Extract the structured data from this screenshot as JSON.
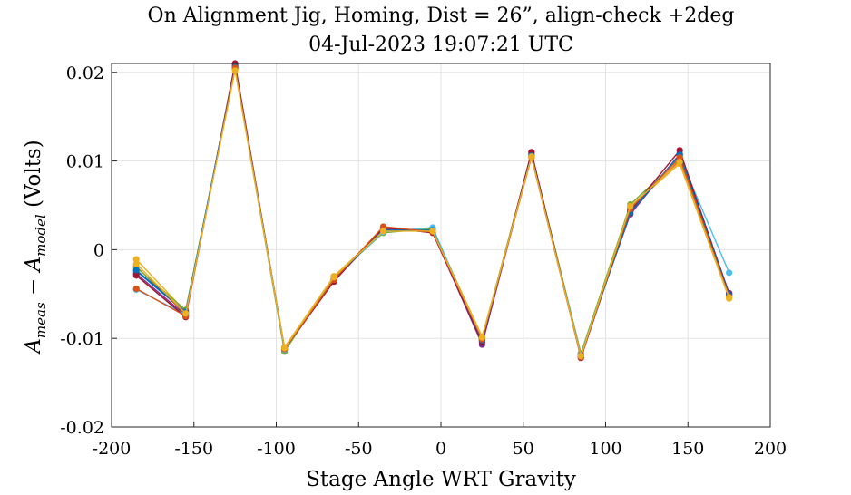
{
  "chart_data": {
    "type": "line",
    "title": "On Alignment Jig, Homing, Dist = 26”, align-check +2deg",
    "subtitle": "04-Jul-2023 19:07:21 UTC",
    "xlabel": "Stage Angle WRT Gravity",
    "ylabel_main": "A",
    "ylabel_sub1": "meas",
    "ylabel_minus": " − A",
    "ylabel_sub2": "model",
    "ylabel_units": " (Volts)",
    "xlim": [
      -200,
      200
    ],
    "ylim": [
      -0.02,
      0.021
    ],
    "xticks": [
      -200,
      -150,
      -100,
      -50,
      0,
      50,
      100,
      150,
      200
    ],
    "xtick_labels": [
      "-200",
      "-150",
      "-100",
      "-50",
      "0",
      "50",
      "100",
      "150",
      "200"
    ],
    "yticks": [
      -0.02,
      -0.01,
      0,
      0.01,
      0.02
    ],
    "ytick_labels": [
      "-0.02",
      "-0.01",
      "0",
      "0.01",
      "0.02"
    ],
    "grid": true,
    "x": [
      -185,
      -155,
      -125,
      -95,
      -65,
      -35,
      -5,
      25,
      55,
      85,
      115,
      145,
      175
    ],
    "series": [
      {
        "color": "#0072BD",
        "values": [
          -0.0024,
          -0.0071,
          0.0205,
          -0.0112,
          -0.0033,
          0.0021,
          0.0023,
          -0.0102,
          0.0107,
          -0.0119,
          0.0043,
          0.0106,
          -0.005
        ]
      },
      {
        "color": "#D95319",
        "values": [
          -0.0019,
          -0.0073,
          0.0207,
          -0.0111,
          -0.0034,
          0.0024,
          0.0021,
          -0.0101,
          0.0106,
          -0.0121,
          0.0045,
          0.0101,
          -0.0052
        ]
      },
      {
        "color": "#EDB120",
        "values": [
          -0.0011,
          -0.007,
          0.0203,
          -0.011,
          -0.003,
          0.0022,
          0.0022,
          -0.0098,
          0.0105,
          -0.012,
          0.0048,
          0.0097,
          -0.0055
        ]
      },
      {
        "color": "#7E2F8E",
        "values": [
          -0.0027,
          -0.0074,
          0.0208,
          -0.0113,
          -0.0035,
          0.0023,
          0.002,
          -0.0107,
          0.0108,
          -0.0118,
          0.004,
          0.0108,
          -0.0049
        ]
      },
      {
        "color": "#77AC30",
        "values": [
          -0.002,
          -0.0068,
          0.0204,
          -0.0115,
          -0.0031,
          0.0019,
          0.0024,
          -0.01,
          0.0109,
          -0.0117,
          0.0051,
          0.0103,
          -0.0051
        ]
      },
      {
        "color": "#4DBEEE",
        "values": [
          -0.0045,
          -0.0073,
          0.0206,
          -0.0113,
          -0.0032,
          0.002,
          0.0025,
          -0.0103,
          0.0107,
          -0.0119,
          0.0047,
          0.0105,
          -0.0026
        ]
      },
      {
        "color": "#A2142F",
        "values": [
          -0.0029,
          -0.0076,
          0.021,
          -0.0112,
          -0.0036,
          0.0025,
          0.0019,
          -0.0104,
          0.011,
          -0.0122,
          0.0044,
          0.0112,
          -0.005
        ]
      },
      {
        "color": "#0072BD",
        "values": [
          -0.0023,
          -0.007,
          0.0206,
          -0.0111,
          -0.0033,
          0.0022,
          0.0022,
          -0.0102,
          0.0106,
          -0.012,
          0.0042,
          0.0107,
          -0.0051
        ]
      },
      {
        "color": "#D95319",
        "values": [
          -0.0044,
          -0.0075,
          0.0205,
          -0.0112,
          -0.0034,
          0.0026,
          0.002,
          -0.0101,
          0.0104,
          -0.0121,
          0.0046,
          0.0104,
          -0.0053
        ]
      },
      {
        "color": "#EDB120",
        "values": [
          -0.0016,
          -0.0072,
          0.0202,
          -0.0111,
          -0.0031,
          0.0021,
          0.0021,
          -0.0099,
          0.0105,
          -0.012,
          0.0049,
          0.0099,
          -0.0054
        ]
      }
    ]
  }
}
